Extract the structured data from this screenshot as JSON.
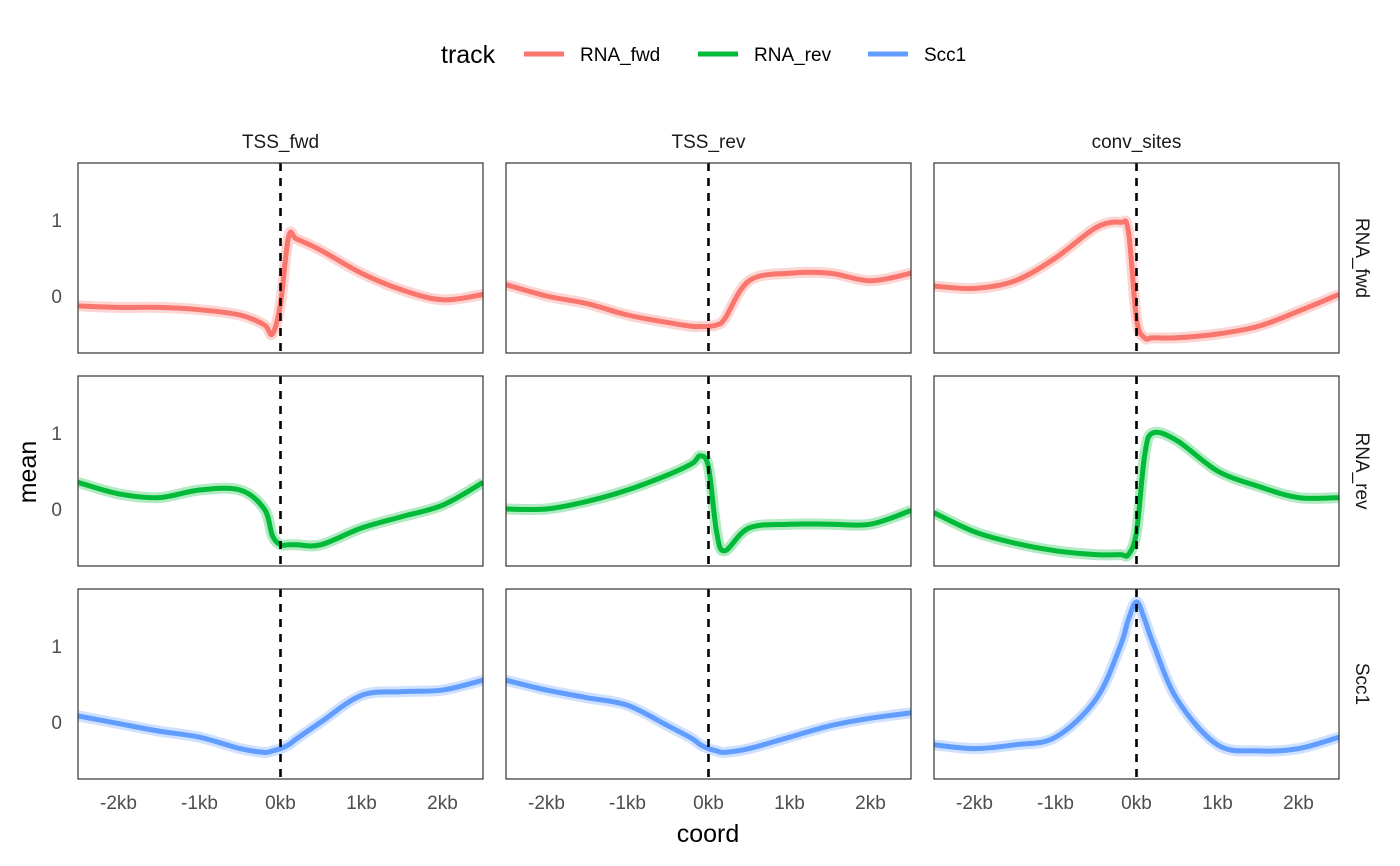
{
  "chart_data": {
    "type": "line",
    "title": "",
    "xlabel": "coord",
    "ylabel": "mean",
    "xlim": [
      -2.5,
      2.5
    ],
    "x_unit": "kb",
    "x_ticks": [
      -2,
      -1,
      0,
      1,
      2
    ],
    "x_tick_labels": [
      "-2kb",
      "-1kb",
      "0kb",
      "1kb",
      "2kb"
    ],
    "y_ticks": [
      0,
      1
    ],
    "y_tick_labels": [
      "0",
      "1"
    ],
    "ylim": [
      -0.75,
      1.75
    ],
    "vline_x": 0,
    "legend": {
      "title": "track",
      "position": "top",
      "entries": [
        {
          "name": "RNA_fwd",
          "color": "#F8766D"
        },
        {
          "name": "RNA_rev",
          "color": "#00BA38"
        },
        {
          "name": "Scc1",
          "color": "#619CFF"
        }
      ]
    },
    "columns": [
      "TSS_fwd",
      "TSS_rev",
      "conv_sites"
    ],
    "rows": [
      "RNA_fwd",
      "RNA_rev",
      "Scc1"
    ],
    "x": [
      -2.5,
      -2.0,
      -1.5,
      -1.0,
      -0.5,
      -0.2,
      -0.1,
      0.0,
      0.1,
      0.2,
      0.5,
      1.0,
      1.5,
      2.0,
      2.5
    ],
    "panels": [
      {
        "row": "RNA_fwd",
        "col": "TSS_fwd",
        "series": "RNA_fwd",
        "values": [
          -0.13,
          -0.15,
          -0.15,
          -0.18,
          -0.25,
          -0.38,
          -0.5,
          -0.1,
          0.78,
          0.75,
          0.6,
          0.3,
          0.08,
          -0.05,
          0.02
        ]
      },
      {
        "row": "RNA_fwd",
        "col": "TSS_rev",
        "series": "RNA_fwd",
        "values": [
          0.15,
          0.0,
          -0.1,
          -0.25,
          -0.35,
          -0.4,
          -0.4,
          -0.4,
          -0.38,
          -0.3,
          0.2,
          0.3,
          0.3,
          0.2,
          0.3
        ]
      },
      {
        "row": "RNA_fwd",
        "col": "conv_sites",
        "series": "RNA_fwd",
        "values": [
          0.13,
          0.1,
          0.2,
          0.5,
          0.9,
          0.97,
          0.85,
          -0.3,
          -0.55,
          -0.55,
          -0.55,
          -0.5,
          -0.4,
          -0.2,
          0.02
        ]
      },
      {
        "row": "RNA_rev",
        "col": "TSS_fwd",
        "series": "RNA_rev",
        "values": [
          0.35,
          0.2,
          0.15,
          0.25,
          0.25,
          0.0,
          -0.35,
          -0.47,
          -0.47,
          -0.47,
          -0.47,
          -0.25,
          -0.1,
          0.05,
          0.35
        ]
      },
      {
        "row": "RNA_rev",
        "col": "TSS_rev",
        "series": "RNA_rev",
        "values": [
          0.0,
          0.0,
          0.1,
          0.25,
          0.45,
          0.6,
          0.7,
          0.55,
          -0.3,
          -0.55,
          -0.25,
          -0.2,
          -0.2,
          -0.2,
          -0.02
        ]
      },
      {
        "row": "RNA_rev",
        "col": "conv_sites",
        "series": "RNA_rev",
        "values": [
          -0.05,
          -0.3,
          -0.45,
          -0.55,
          -0.6,
          -0.6,
          -0.6,
          -0.3,
          0.7,
          1.0,
          0.9,
          0.5,
          0.3,
          0.15,
          0.15
        ]
      },
      {
        "row": "Scc1",
        "col": "TSS_fwd",
        "series": "Scc1",
        "values": [
          0.08,
          -0.02,
          -0.12,
          -0.2,
          -0.35,
          -0.4,
          -0.38,
          -0.35,
          -0.3,
          -0.22,
          0.0,
          0.35,
          0.4,
          0.42,
          0.55
        ]
      },
      {
        "row": "Scc1",
        "col": "TSS_rev",
        "series": "Scc1",
        "values": [
          0.55,
          0.42,
          0.32,
          0.22,
          -0.05,
          -0.22,
          -0.3,
          -0.35,
          -0.38,
          -0.4,
          -0.35,
          -0.2,
          -0.05,
          0.05,
          0.12
        ]
      },
      {
        "row": "Scc1",
        "col": "conv_sites",
        "series": "Scc1",
        "values": [
          -0.3,
          -0.35,
          -0.3,
          -0.2,
          0.3,
          1.0,
          1.35,
          1.58,
          1.35,
          1.05,
          0.3,
          -0.3,
          -0.38,
          -0.35,
          -0.2
        ]
      }
    ]
  }
}
